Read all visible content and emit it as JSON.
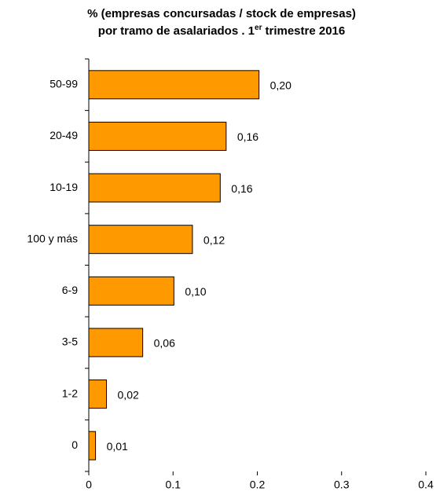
{
  "chart_data": {
    "type": "bar",
    "orientation": "horizontal",
    "title": "% (empresas concursadas / stock de empresas)",
    "subtitle": [
      "por tramo de asalariados . 1",
      "er",
      "trimestre 2016"
    ],
    "categories": [
      "50-99",
      "20-49",
      "10-19",
      "100 y más",
      "6-9",
      "3-5",
      "1-2",
      "0"
    ],
    "values": [
      0.202,
      0.163,
      0.156,
      0.123,
      0.101,
      0.064,
      0.021,
      0.008
    ],
    "value_labels": [
      "0,20",
      "0,16",
      "0,16",
      "0,12",
      "0,10",
      "0,06",
      "0,02",
      "0,01"
    ],
    "color": "#ff9900",
    "xlim": [
      0,
      0.4
    ],
    "xticks": [
      0,
      0.1,
      0.2,
      0.3,
      0.4
    ],
    "grid": false
  }
}
